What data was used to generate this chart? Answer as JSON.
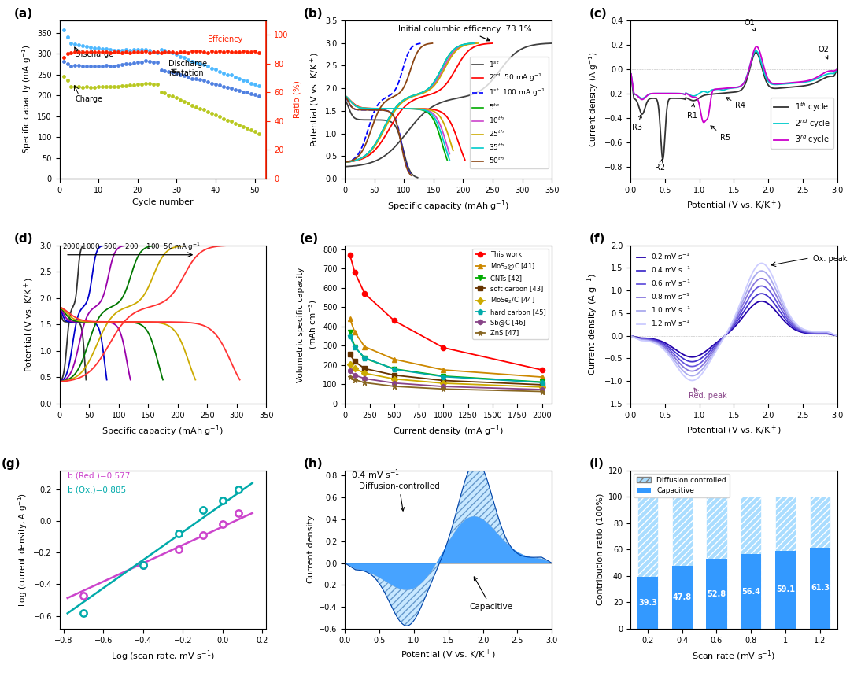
{
  "fig_size": [
    10.8,
    8.59
  ],
  "panel_a": {
    "discharge_color": "#4db8ff",
    "charge_color": "#b8c820",
    "retention_color": "#5080e0",
    "efficiency_color": "#ff2000",
    "ylabel_left": "Specific capacity (mA g$^{-1}$)",
    "ylabel_right": "Ratio (%)",
    "xlabel": "Cycle number",
    "ylim_left": [
      0,
      380
    ],
    "ylim_right": [
      0,
      110
    ]
  },
  "panel_b": {
    "annotation": "Initial columbic efficency: 73.1%",
    "xlabel": "Specific capacity (mAh g$^{-1}$)",
    "ylabel": "Potential (V vs. K/K$^+$)",
    "ylim": [
      0.0,
      3.5
    ],
    "xlim": [
      0,
      350
    ]
  },
  "panel_c": {
    "xlabel": "Potential (V vs. K/K$^+$)",
    "ylabel": "Current density (A g$^{-1}$)",
    "xlim": [
      0.0,
      3.0
    ],
    "ylim": [
      -0.9,
      0.4
    ]
  },
  "panel_d": {
    "xlabel": "Specific capacity (mAh g$^{-1}$)",
    "ylabel": "Potential (V vs. K/K$^+$)",
    "xlim": [
      0,
      350
    ],
    "ylim": [
      0,
      3.0
    ]
  },
  "panel_e": {
    "xlabel": "Current density (mA g$^{-1}$)",
    "ylabel": "Volumetric specific capacity\n(mAh cm$^{-3}$)",
    "xlim": [
      0,
      2000
    ],
    "ylim": [
      0,
      800
    ]
  },
  "panel_f": {
    "xlabel": "Potential (V vs. K/K$^+$)",
    "ylabel": "Current density (A g$^{-1}$)",
    "xlim": [
      0.0,
      3.0
    ],
    "ylim": [
      -1.5,
      2.0
    ]
  },
  "panel_g": {
    "xlabel": "Log (scan rate, mV s$^{-1}$)",
    "ylabel": "Log (current density, A g$^{-1}$)",
    "xlim": [
      -0.8,
      0.2
    ],
    "ylim": [
      -0.7,
      0.3
    ],
    "red_color": "#cc44cc",
    "ox_color": "#00aaaa"
  },
  "panel_h": {
    "xlabel": "Potential (V vs. K/K$^+$)",
    "ylabel": "Current density",
    "xlim": [
      0.0,
      3.0
    ],
    "ylim": [
      -0.6,
      0.8
    ]
  },
  "panel_i": {
    "xlabel": "Scan rate (mV s$^{-1}$)",
    "ylabel": "Contribution ratio (100%)",
    "ylim": [
      0,
      120
    ],
    "categories": [
      "0.2",
      "0.4",
      "0.6",
      "0.8",
      "1",
      "1.2"
    ],
    "capacitive": [
      39.3,
      47.8,
      52.8,
      56.4,
      59.1,
      61.3
    ],
    "diffusion_color": "#aaddff",
    "capacitive_color": "#3399ff",
    "diffusion_label": "Diffusion controlled",
    "capacitive_label": "Capacitive"
  }
}
